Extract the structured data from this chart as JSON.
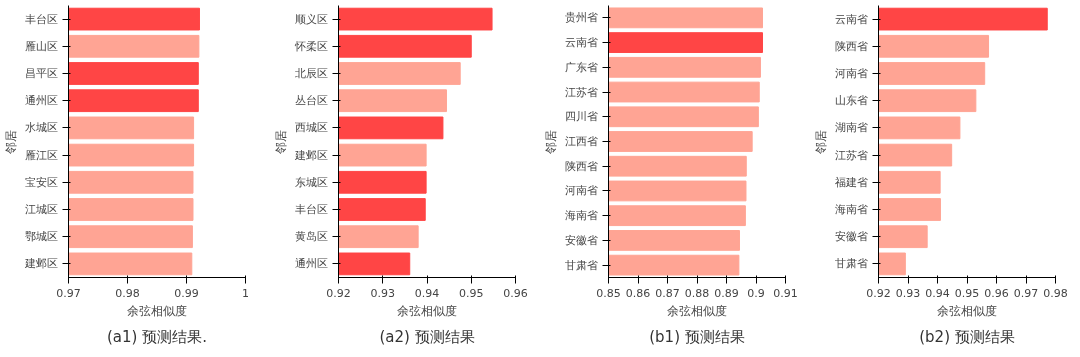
{
  "chart_data": [
    {
      "type": "bar",
      "orientation": "horizontal",
      "title": "(a1) 预测结果.",
      "xlabel": "余弦相似度",
      "ylabel": "邻居",
      "categories": [
        "丰台区",
        "雁山区",
        "昌平区",
        "通州区",
        "水城区",
        "雁江区",
        "宝安区",
        "江城区",
        "鄂城区",
        "建邺区"
      ],
      "values": [
        0.9922,
        0.9921,
        0.992,
        0.992,
        0.9912,
        0.9912,
        0.9911,
        0.9911,
        0.991,
        0.9909
      ],
      "colors": [
        "#ff4545",
        "#ffa494",
        "#ff4545",
        "#ff4545",
        "#ffa494",
        "#ffa494",
        "#ffa494",
        "#ffa494",
        "#ffa494",
        "#ffa494"
      ],
      "xlim": [
        0.97,
        1
      ],
      "xticks": [
        0.97,
        0.98,
        0.99,
        1
      ],
      "grid": false
    },
    {
      "type": "bar",
      "orientation": "horizontal",
      "title": "(a2) 预测结果",
      "xlabel": "余弦相似度",
      "ylabel": "邻居",
      "categories": [
        "顺义区",
        "怀柔区",
        "北辰区",
        "丛台区",
        "西城区",
        "建邺区",
        "东城区",
        "丰台区",
        "黄岛区",
        "通州区"
      ],
      "values": [
        0.9547,
        0.95,
        0.9475,
        0.9444,
        0.9436,
        0.9398,
        0.9398,
        0.9396,
        0.938,
        0.9361
      ],
      "colors": [
        "#ff4545",
        "#ff4545",
        "#ffa494",
        "#ffa494",
        "#ff4545",
        "#ffa494",
        "#ff4545",
        "#ff4545",
        "#ffa494",
        "#ff4545"
      ],
      "xlim": [
        0.92,
        0.96
      ],
      "xticks": [
        0.92,
        0.93,
        0.94,
        0.95,
        0.96
      ],
      "grid": false
    },
    {
      "type": "bar",
      "orientation": "horizontal",
      "title": "(b1) 预测结果",
      "xlabel": "余弦相似度",
      "ylabel": "邻居",
      "categories": [
        "贵州省",
        "云南省",
        "广东省",
        "江苏省",
        "四川省",
        "江西省",
        "陕西省",
        "河南省",
        "海南省",
        "安徽省",
        "甘肃省"
      ],
      "values": [
        0.9022,
        0.9022,
        0.9015,
        0.9011,
        0.9008,
        0.8987,
        0.8967,
        0.8966,
        0.8964,
        0.8944,
        0.8942
      ],
      "colors": [
        "#ffa494",
        "#ff4545",
        "#ffa494",
        "#ffa494",
        "#ffa494",
        "#ffa494",
        "#ffa494",
        "#ffa494",
        "#ffa494",
        "#ffa494",
        "#ffa494"
      ],
      "xlim": [
        0.85,
        0.91
      ],
      "xticks": [
        0.85,
        0.86,
        0.87,
        0.88,
        0.89,
        0.9,
        0.91
      ],
      "grid": false
    },
    {
      "type": "bar",
      "orientation": "horizontal",
      "title": "(b2) 预测结果",
      "xlabel": "余弦相似度",
      "ylabel": "邻居",
      "categories": [
        "云南省",
        "陕西省",
        "河南省",
        "山东省",
        "湖南省",
        "江苏省",
        "福建省",
        "海南省",
        "安徽省",
        "甘肃省"
      ],
      "values": [
        0.9772,
        0.9573,
        0.956,
        0.953,
        0.9476,
        0.9448,
        0.9409,
        0.941,
        0.9365,
        0.9291
      ],
      "colors": [
        "#ff4545",
        "#ffa494",
        "#ffa494",
        "#ffa494",
        "#ffa494",
        "#ffa494",
        "#ffa494",
        "#ffa494",
        "#ffa494",
        "#ffa494"
      ],
      "xlim": [
        0.92,
        0.98
      ],
      "xticks": [
        0.92,
        0.93,
        0.94,
        0.95,
        0.96,
        0.97,
        0.98
      ],
      "grid": false
    }
  ]
}
